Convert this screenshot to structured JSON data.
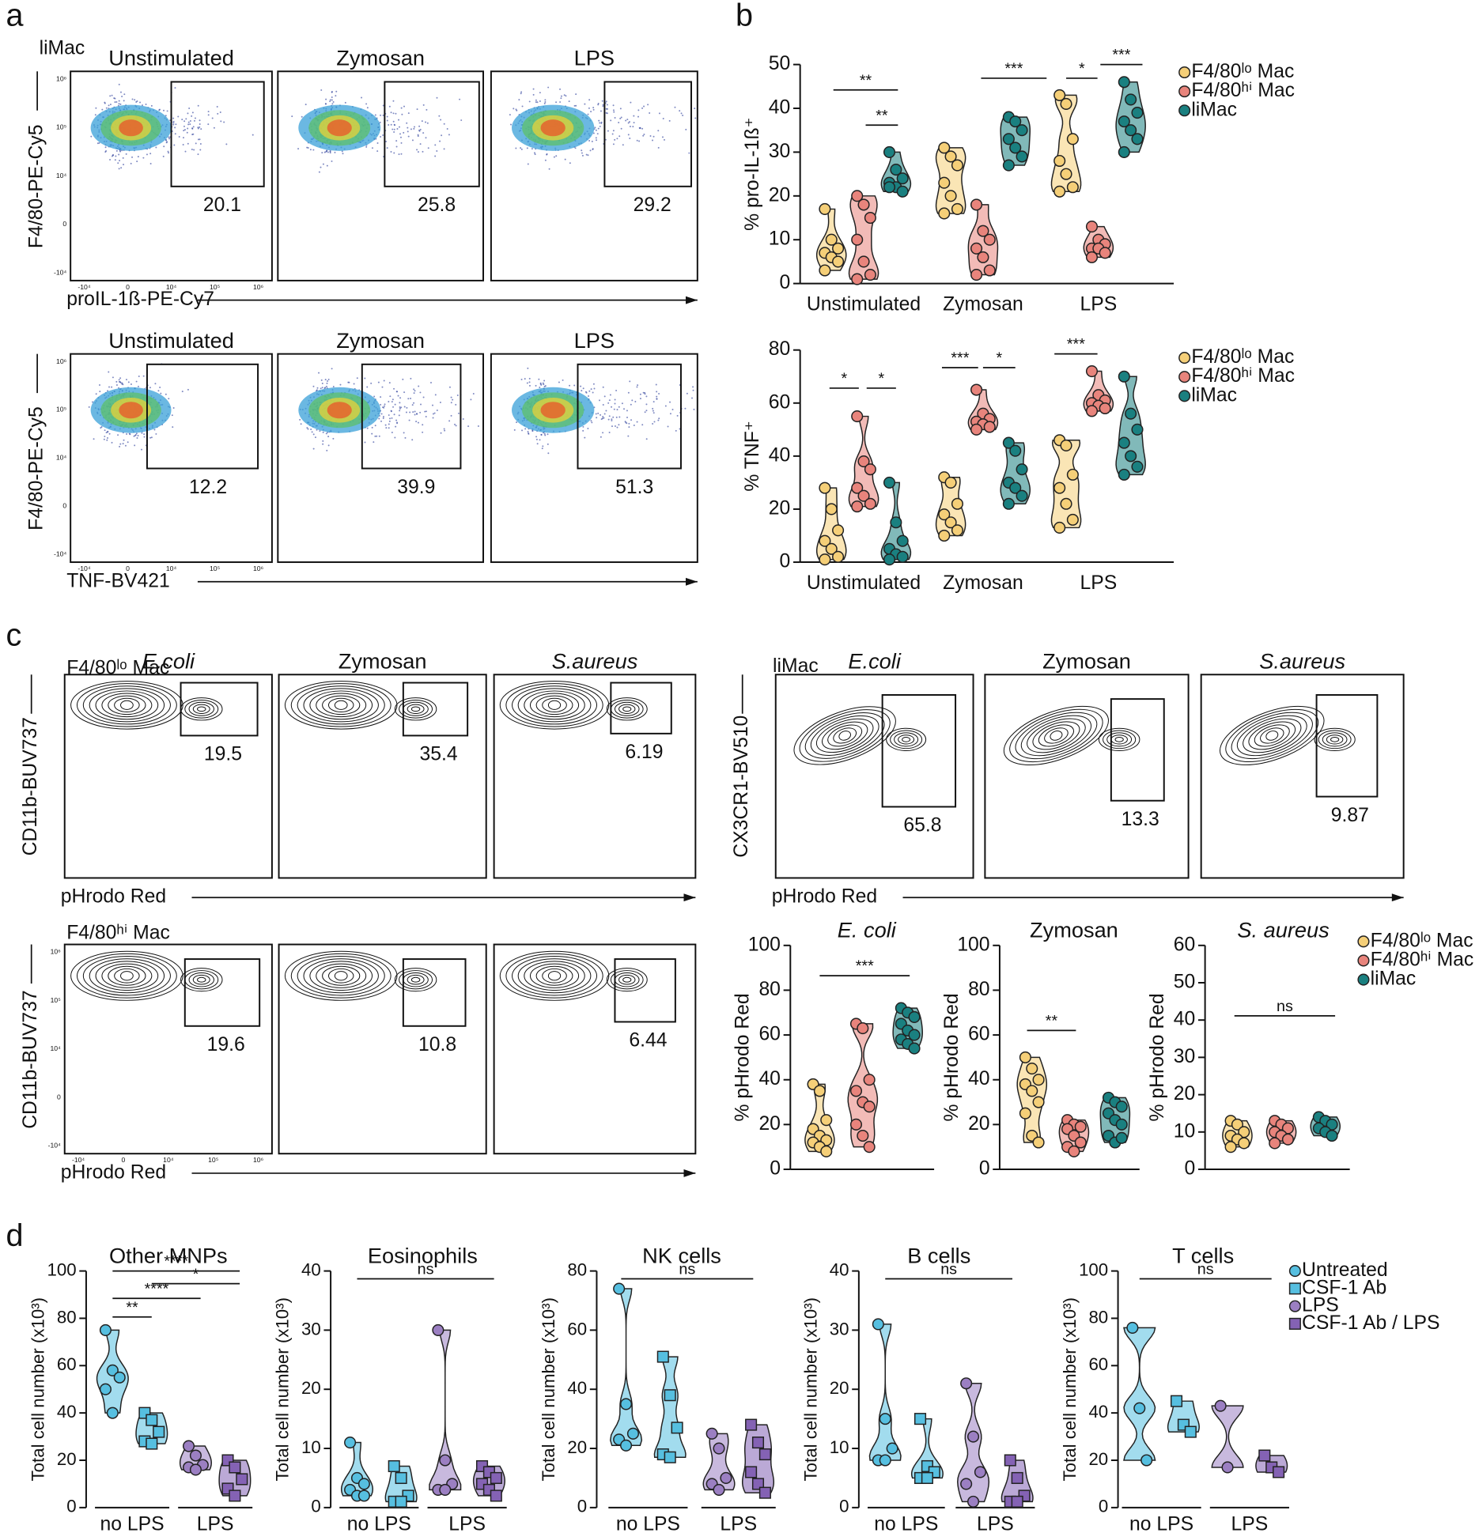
{
  "panel_labels": [
    "a",
    "b",
    "c",
    "d"
  ],
  "flow_ticks": {
    "y": [
      "10⁶",
      "10⁵",
      "10⁴",
      "0",
      "-10⁴"
    ],
    "x": [
      "-10⁴",
      "0",
      "10⁴",
      "10⁵",
      "10⁶"
    ]
  },
  "flow_rows": [
    {
      "label": "liMac",
      "titles": [
        "Unstimulated",
        "Zymosan",
        "LPS"
      ],
      "title_style": [
        "normal",
        "normal",
        "normal"
      ],
      "ylabel": "F4/80-PE-Cy5",
      "xlabel": "proIL-1ß-PE-Cy7",
      "style": "density",
      "gates": [
        20.1,
        25.8,
        29.2
      ]
    },
    {
      "titles": [
        "Unstimulated",
        "Zymosan",
        "LPS"
      ],
      "title_style": [
        "normal",
        "normal",
        "normal"
      ],
      "ylabel": "F4/80-PE-Cy5",
      "xlabel": "TNF-BV421",
      "style": "density",
      "gates": [
        12.2,
        39.9,
        51.3
      ]
    },
    {
      "label": "F4/80ˡᵒ Mac",
      "titles": [
        "E.coli",
        "Zymosan",
        "S.aureus"
      ],
      "title_style": [
        "italic",
        "normal",
        "italic"
      ],
      "ylabel": "CD11b-BUV737",
      "xlabel": "pHrodo Red",
      "style": "contour",
      "gates": [
        19.5,
        35.4,
        6.19
      ]
    },
    {
      "label": "liMac",
      "titles": [
        "E.coli",
        "Zymosan",
        "S.aureus"
      ],
      "title_style": [
        "italic",
        "normal",
        "italic"
      ],
      "ylabel": "CX3CR1-BV510",
      "xlabel": "pHrodo Red",
      "style": "contour",
      "gates": [
        65.8,
        13.3,
        9.87
      ]
    },
    {
      "label": "F4/80ʰⁱ Mac",
      "ylabel": "CD11b-BUV737",
      "xlabel": "pHrodo Red",
      "style": "contour",
      "gates": [
        19.6,
        10.8,
        6.44
      ]
    }
  ],
  "chart_data": [
    {
      "type": "violin",
      "ylabel": "% pro-IL-1ß⁺",
      "categories": [
        "Unstimulated",
        "Zymosan",
        "LPS"
      ],
      "ylim": [
        0,
        50
      ],
      "yticks": [
        0,
        10,
        20,
        30,
        40,
        50
      ],
      "legend": true,
      "annotations": [
        "**",
        "**",
        "***",
        "*",
        "***"
      ],
      "series": [
        {
          "name": "F4/80ˡᵒ Mac",
          "color": "#f5cf78",
          "marker": "circle",
          "values": [
            [
              17,
              10,
              8,
              7,
              6,
              5,
              3
            ],
            [
              31,
              29,
              27,
              23,
              20,
              17,
              16
            ],
            [
              43,
              41,
              33,
              28,
              25,
              22,
              21
            ]
          ]
        },
        {
          "name": "F4/80ʰⁱ Mac",
          "color": "#e8847c",
          "marker": "circle",
          "values": [
            [
              20,
              18,
              15,
              10,
              5,
              2,
              1
            ],
            [
              18,
              12,
              10,
              8,
              6,
              3,
              2
            ],
            [
              13,
              10,
              9,
              8,
              8,
              7,
              6
            ]
          ]
        },
        {
          "name": "liMac",
          "color": "#1a8080",
          "marker": "circle",
          "values": [
            [
              30,
              26,
              24,
              23,
              22,
              21,
              22
            ],
            [
              38,
              37,
              35,
              33,
              31,
              29,
              27
            ],
            [
              46,
              42,
              39,
              37,
              35,
              33,
              30
            ]
          ]
        }
      ]
    },
    {
      "type": "violin",
      "ylabel": "% TNF⁺",
      "categories": [
        "Unstimulated",
        "Zymosan",
        "LPS"
      ],
      "ylim": [
        0,
        80
      ],
      "yticks": [
        0,
        20,
        40,
        60,
        80
      ],
      "legend": true,
      "annotations": [
        "*",
        "*",
        "***",
        "*",
        "***"
      ],
      "series": [
        {
          "name": "F4/80ˡᵒ Mac",
          "color": "#f5cf78",
          "marker": "circle",
          "values": [
            [
              28,
              20,
              12,
              8,
              5,
              2,
              1
            ],
            [
              32,
              30,
              22,
              18,
              15,
              12,
              10
            ],
            [
              46,
              44,
              33,
              28,
              22,
              16,
              13
            ]
          ]
        },
        {
          "name": "F4/80ʰⁱ Mac",
          "color": "#e8847c",
          "marker": "circle",
          "values": [
            [
              55,
              38,
              35,
              28,
              25,
              22,
              21
            ],
            [
              65,
              56,
              54,
              53,
              52,
              51,
              50
            ],
            [
              72,
              63,
              61,
              60,
              59,
              58,
              57
            ]
          ]
        },
        {
          "name": "liMac",
          "color": "#1a8080",
          "marker": "circle",
          "values": [
            [
              30,
              15,
              8,
              5,
              3,
              2,
              1
            ],
            [
              45,
              42,
              35,
              30,
              28,
              25,
              22
            ],
            [
              70,
              56,
              50,
              45,
              40,
              36,
              33
            ]
          ]
        }
      ]
    },
    {
      "type": "violin",
      "title": "E. coli",
      "title_style": "italic",
      "ylabel": "% pHrodo Red",
      "ylim": [
        0,
        100
      ],
      "yticks": [
        0,
        20,
        40,
        60,
        80,
        100
      ],
      "annotations": [
        "***"
      ],
      "series": [
        {
          "color": "#f5cf78",
          "marker": "circle",
          "values": [
            38,
            35,
            22,
            18,
            15,
            13,
            12,
            10,
            8
          ]
        },
        {
          "color": "#e8847c",
          "marker": "circle",
          "values": [
            65,
            63,
            40,
            35,
            30,
            28,
            20,
            15,
            10
          ]
        },
        {
          "color": "#1a8080",
          "marker": "circle",
          "values": [
            72,
            70,
            68,
            65,
            62,
            60,
            58,
            56,
            54
          ]
        }
      ]
    },
    {
      "type": "violin",
      "title": "Zymosan",
      "title_style": "normal",
      "ylabel": "% pHrodo Red",
      "ylim": [
        0,
        100
      ],
      "yticks": [
        0,
        20,
        40,
        60,
        80,
        100
      ],
      "annotations": [
        "**"
      ],
      "series": [
        {
          "color": "#f5cf78",
          "marker": "circle",
          "values": [
            50,
            45,
            40,
            38,
            35,
            30,
            25,
            15,
            12
          ]
        },
        {
          "color": "#e8847c",
          "marker": "circle",
          "values": [
            22,
            20,
            19,
            18,
            15,
            12,
            10,
            8
          ]
        },
        {
          "color": "#1a8080",
          "marker": "circle",
          "values": [
            32,
            30,
            28,
            25,
            22,
            20,
            15,
            12,
            14
          ]
        }
      ]
    },
    {
      "type": "violin",
      "title": "S. aureus",
      "title_style": "italic",
      "ylabel": "% pHrodo Red",
      "ylim": [
        0,
        60
      ],
      "yticks": [
        0,
        10,
        20,
        30,
        40,
        50,
        60
      ],
      "legend": true,
      "annotations": [
        "ns"
      ],
      "series": [
        {
          "name": "F4/80ˡᵒ Mac",
          "color": "#f5cf78",
          "marker": "circle",
          "values": [
            13,
            12,
            10,
            9,
            8,
            7,
            6
          ]
        },
        {
          "name": "F4/80ʰⁱ Mac",
          "color": "#e8847c",
          "marker": "circle",
          "values": [
            13,
            12,
            11,
            10,
            9,
            8,
            7
          ]
        },
        {
          "name": "liMac",
          "color": "#1a8080",
          "marker": "circle",
          "values": [
            14,
            13,
            12,
            11,
            10,
            9
          ]
        }
      ]
    },
    {
      "type": "violin",
      "title": "Other MNPs",
      "title_style": "normal",
      "ylabel": "Total cell number (x10³)",
      "groups": [
        "no LPS",
        "LPS"
      ],
      "ylim": [
        0,
        100
      ],
      "yticks": [
        0,
        20,
        40,
        60,
        80,
        100
      ],
      "annotations": [
        "****",
        "*",
        "****",
        "**"
      ],
      "series": [
        {
          "color": "#56bfe0",
          "marker": "circle",
          "values": [
            75,
            58,
            55,
            50,
            40
          ]
        },
        {
          "color": "#56bfe0",
          "marker": "square",
          "values": [
            40,
            37,
            32,
            28,
            27
          ]
        },
        {
          "color": "#9b7fc2",
          "marker": "circle",
          "values": [
            26,
            22,
            18,
            17,
            16
          ]
        },
        {
          "color": "#8462b4",
          "marker": "square",
          "values": [
            20,
            17,
            12,
            8,
            5
          ]
        }
      ]
    },
    {
      "type": "violin",
      "title": "Eosinophils",
      "title_style": "normal",
      "ylabel": "Total cell number (x10³)",
      "groups": [
        "no LPS",
        "LPS"
      ],
      "ylim": [
        0,
        40
      ],
      "yticks": [
        0,
        10,
        20,
        30,
        40
      ],
      "annotations": [
        "ns"
      ],
      "series": [
        {
          "color": "#56bfe0",
          "marker": "circle",
          "values": [
            11,
            5,
            4,
            3,
            2,
            2
          ]
        },
        {
          "color": "#56bfe0",
          "marker": "square",
          "values": [
            7,
            5,
            2,
            1,
            1
          ]
        },
        {
          "color": "#9b7fc2",
          "marker": "circle",
          "values": [
            30,
            8,
            4,
            3,
            3
          ]
        },
        {
          "color": "#8462b4",
          "marker": "square",
          "values": [
            7,
            6,
            5,
            4,
            3,
            2
          ]
        }
      ]
    },
    {
      "type": "violin",
      "title": "NK cells",
      "title_style": "normal",
      "ylabel": "Total cell number (x10³)",
      "groups": [
        "no LPS",
        "LPS"
      ],
      "ylim": [
        0,
        80
      ],
      "yticks": [
        0,
        20,
        40,
        60,
        80
      ],
      "annotations": [
        "ns"
      ],
      "series": [
        {
          "color": "#56bfe0",
          "marker": "circle",
          "values": [
            74,
            35,
            25,
            23,
            21
          ]
        },
        {
          "color": "#56bfe0",
          "marker": "square",
          "values": [
            51,
            38,
            27,
            18,
            17
          ]
        },
        {
          "color": "#9b7fc2",
          "marker": "circle",
          "values": [
            25,
            20,
            10,
            8,
            6
          ]
        },
        {
          "color": "#8462b4",
          "marker": "square",
          "values": [
            28,
            22,
            18,
            12,
            8,
            5
          ]
        }
      ]
    },
    {
      "type": "violin",
      "title": "B cells",
      "title_style": "normal",
      "ylabel": "Total cell number (x10³)",
      "groups": [
        "no LPS",
        "LPS"
      ],
      "ylim": [
        0,
        40
      ],
      "yticks": [
        0,
        10,
        20,
        30,
        40
      ],
      "annotations": [
        "ns"
      ],
      "series": [
        {
          "color": "#56bfe0",
          "marker": "circle",
          "values": [
            31,
            15,
            10,
            8,
            8
          ]
        },
        {
          "color": "#56bfe0",
          "marker": "square",
          "values": [
            15,
            7,
            6,
            5,
            5
          ]
        },
        {
          "color": "#9b7fc2",
          "marker": "circle",
          "values": [
            21,
            12,
            6,
            4,
            1
          ]
        },
        {
          "color": "#8462b4",
          "marker": "square",
          "values": [
            8,
            5,
            2,
            1,
            1
          ]
        }
      ]
    },
    {
      "type": "violin",
      "title": "T cells",
      "title_style": "normal",
      "ylabel": "Total cell number (x10³)",
      "groups": [
        "no LPS",
        "LPS"
      ],
      "ylim": [
        0,
        100
      ],
      "yticks": [
        0,
        20,
        40,
        60,
        80,
        100
      ],
      "legend": true,
      "annotations": [
        "ns"
      ],
      "series": [
        {
          "name": "Untreated",
          "color": "#56bfe0",
          "marker": "circle",
          "values": [
            76,
            42,
            20
          ]
        },
        {
          "name": "CSF-1 Ab",
          "color": "#56bfe0",
          "marker": "square",
          "values": [
            45,
            35,
            32
          ]
        },
        {
          "name": "LPS",
          "color": "#9b7fc2",
          "marker": "circle",
          "values": [
            43,
            17
          ]
        },
        {
          "name": "CSF-1 Ab / LPS",
          "color": "#8462b4",
          "marker": "square",
          "values": [
            22,
            17,
            15
          ]
        }
      ]
    }
  ]
}
